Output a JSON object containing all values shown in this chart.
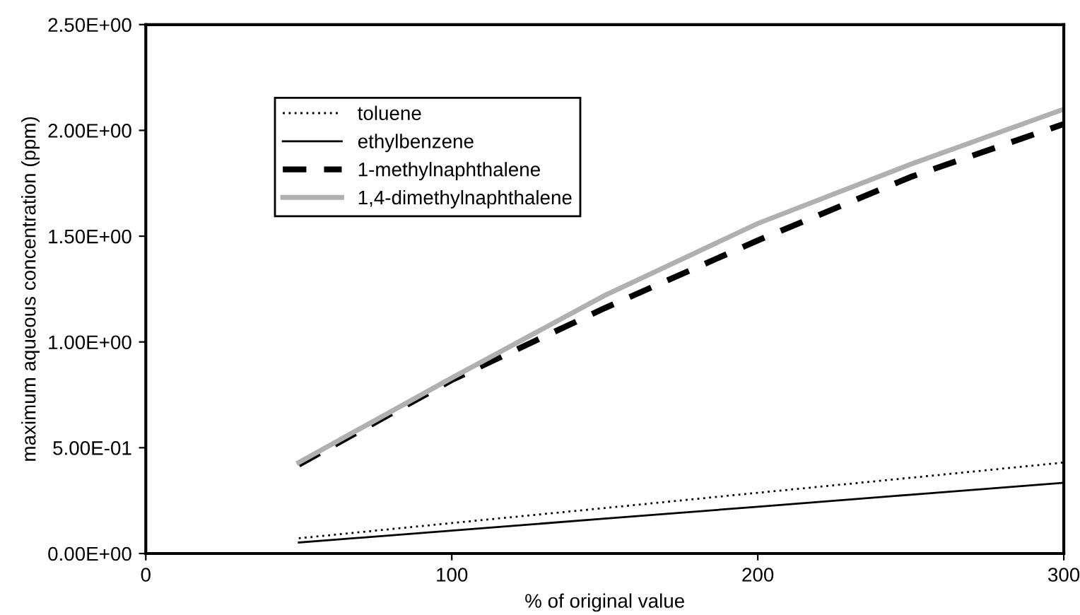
{
  "chart_data": {
    "type": "line",
    "xlabel": "% of original value",
    "ylabel": "maximum aqueous concentration (ppm)",
    "xlim": [
      0,
      300
    ],
    "xticks": [
      0,
      100,
      200,
      300
    ],
    "ylim": [
      0,
      2.5
    ],
    "yticks": [
      {
        "value": 0,
        "label": "0.00E+00"
      },
      {
        "value": 0.5,
        "label": "5.00E-01"
      },
      {
        "value": 1.0,
        "label": "1.00E+00"
      },
      {
        "value": 1.5,
        "label": "1.50E+00"
      },
      {
        "value": 2.0,
        "label": "2.00E+00"
      },
      {
        "value": 2.5,
        "label": "2.50E+00"
      }
    ],
    "x": [
      50,
      100,
      150,
      200,
      250,
      300
    ],
    "grid": false,
    "legend": "top left",
    "marker": "none",
    "series": [
      {
        "name": "toluene",
        "color": "#000000",
        "line_style": "dotted",
        "values": [
          0.072,
          0.144,
          0.215,
          0.287,
          0.358,
          0.43
        ]
      },
      {
        "name": "ethylbenzene",
        "color": "#000000",
        "line_style": "solid",
        "values": [
          0.052,
          0.108,
          0.165,
          0.221,
          0.278,
          0.334
        ]
      },
      {
        "name": "1-methylnaphthalene",
        "color": "#000000",
        "line_style": "dashed",
        "values": [
          0.42,
          0.82,
          1.16,
          1.48,
          1.78,
          2.03
        ]
      },
      {
        "name": "1,4-dimethylnaphthalene",
        "color": "#b0b0b0",
        "line_style": "solid",
        "values": [
          0.43,
          0.83,
          1.22,
          1.56,
          1.84,
          2.1
        ]
      }
    ]
  }
}
